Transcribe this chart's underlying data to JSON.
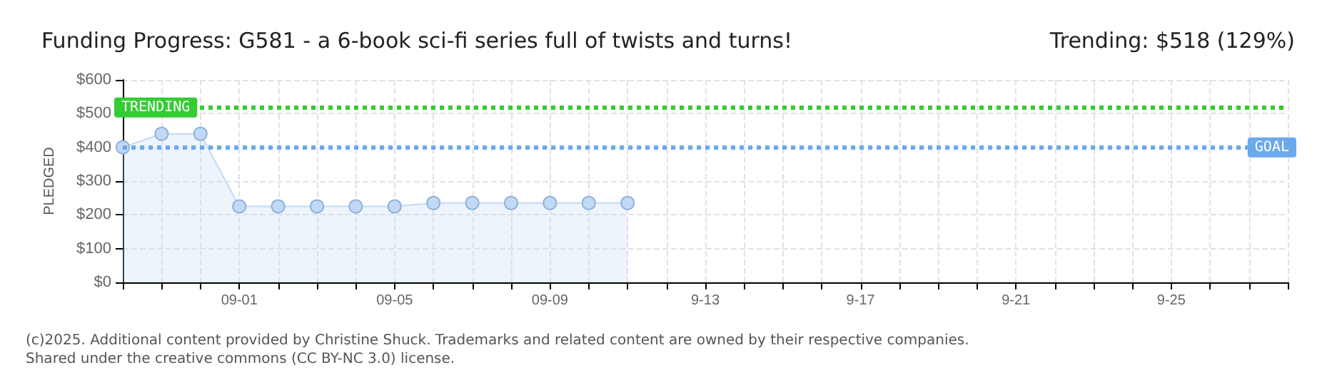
{
  "chart_data": {
    "type": "area",
    "title": "Funding Progress: G581 - a 6-book sci-fi series full of twists and turns!",
    "subtitle": "Trending: $518 (129%)",
    "ylabel": "PLEDGED",
    "x": [
      "--08-29",
      "--08-30",
      "--08-31",
      "--09-01",
      "--09-02",
      "--09-03",
      "--09-04",
      "--09-05",
      "--09-06",
      "--09-07",
      "--09-08",
      "--09-09",
      "--09-10",
      "--09-11"
    ],
    "series": [
      {
        "color": "#c2d9f5",
        "values": [
          400,
          440,
          440,
          225,
          225,
          225,
          225,
          225,
          235,
          235,
          235,
          235,
          235,
          235
        ]
      }
    ],
    "xlim": [
      "--08-29",
      "--09-28"
    ],
    "xticks": [
      {
        "value": "--08-29",
        "label": null
      },
      {
        "value": "--08-30",
        "label": null
      },
      {
        "value": "--08-31",
        "label": null
      },
      {
        "value": "--09-01",
        "label": "09-01"
      },
      {
        "value": "--09-02",
        "label": null
      },
      {
        "value": "--09-03",
        "label": null
      },
      {
        "value": "--09-04",
        "label": null
      },
      {
        "value": "--09-05",
        "label": "09-05"
      },
      {
        "value": "--09-06",
        "label": null
      },
      {
        "value": "--09-07",
        "label": null
      },
      {
        "value": "--09-08",
        "label": null
      },
      {
        "value": "--09-09",
        "label": "09-09"
      },
      {
        "value": "--09-10",
        "label": null
      },
      {
        "value": "--09-11",
        "label": null
      },
      {
        "value": "--09-12",
        "label": null
      },
      {
        "value": "--09-13",
        "label": "9-13"
      },
      {
        "value": "--09-14",
        "label": null
      },
      {
        "value": "--09-15",
        "label": null
      },
      {
        "value": "--09-16",
        "label": null
      },
      {
        "value": "--09-17",
        "label": "9-17"
      },
      {
        "value": "--09-18",
        "label": null
      },
      {
        "value": "--09-19",
        "label": null
      },
      {
        "value": "--09-20",
        "label": null
      },
      {
        "value": "--09-21",
        "label": "9-21"
      },
      {
        "value": "--09-22",
        "label": null
      },
      {
        "value": "--09-23",
        "label": null
      },
      {
        "value": "--09-24",
        "label": null
      },
      {
        "value": "--09-25",
        "label": "9-25"
      },
      {
        "value": "--09-26",
        "label": null
      },
      {
        "value": "--09-27",
        "label": null
      },
      {
        "value": "--09-28",
        "label": null
      }
    ],
    "ylim": [
      0,
      600
    ],
    "yticks": [
      {
        "value": 0,
        "label": "$0"
      },
      {
        "value": 100,
        "label": "$100"
      },
      {
        "value": 200,
        "label": "$200"
      },
      {
        "value": 300,
        "label": "$300"
      },
      {
        "value": 400,
        "label": "$400"
      },
      {
        "value": 500,
        "label": "$500"
      },
      {
        "value": 600,
        "label": "$600"
      }
    ],
    "ref_lines": [
      {
        "axis": "y",
        "value": 518,
        "label": "TRENDING",
        "color": "#33cc33",
        "line_style": "dotted"
      },
      {
        "axis": "y",
        "value": 400,
        "label": "GOAL",
        "color": "#6aa9ee",
        "line_style": "dotted"
      }
    ],
    "annotations": [
      "(c)2025. Additional content provided by Christine Shuck. Trademarks and related content are owned by their respective companies.",
      "Shared under the creative commons (CC BY-NC 3.0) license."
    ],
    "grid": true,
    "marker": "circle",
    "line_style": "solid"
  }
}
